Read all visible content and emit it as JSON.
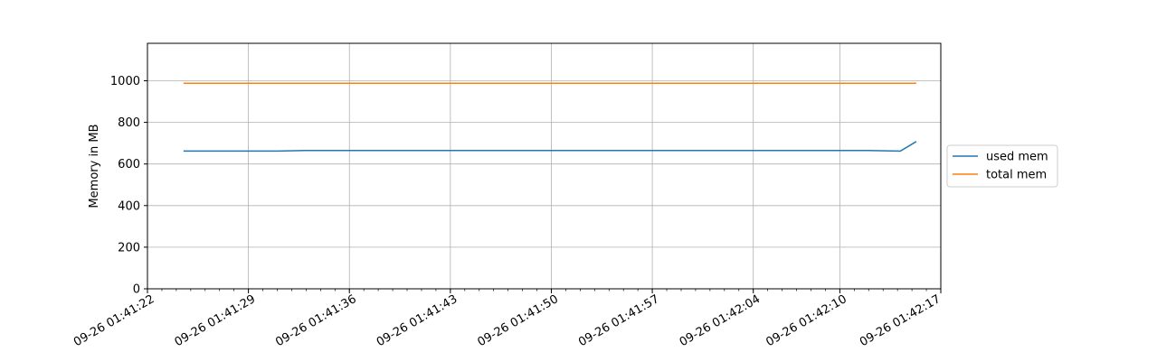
{
  "chart_data": {
    "type": "line",
    "title": "",
    "xlabel": "",
    "ylabel": "Memory in MB",
    "ylim": [
      0,
      1180
    ],
    "xlim": [
      "2024-09-26 01:41:22",
      "2024-09-26 01:42:17"
    ],
    "grid": true,
    "legend": "center-right",
    "y_ticks": [
      0,
      200,
      400,
      600,
      800,
      1000
    ],
    "x_ticks": [
      {
        "t": "2024-09-26 01:41:29",
        "label": "09-26 01:41:29"
      },
      {
        "t": "2024-09-26 01:41:36",
        "label": "09-26 01:41:36"
      },
      {
        "t": "2024-09-26 01:41:43",
        "label": "09-26 01:41:43"
      },
      {
        "t": "2024-09-26 01:41:50",
        "label": "09-26 01:41:50"
      },
      {
        "t": "2024-09-26 01:41:57",
        "label": "09-26 01:41:57"
      },
      {
        "t": "2024-09-26 01:42:04",
        "label": "09-26 01:42:04"
      },
      {
        "t": "2024-09-26 01:42:10",
        "label": "09-26 01:42:10"
      }
    ],
    "x_edge_labels": {
      "left": "09-26 01:41:22",
      "right": "09-26 01:42:17"
    },
    "series": [
      {
        "name": "used mem",
        "color": "#1f77b4",
        "points": [
          [
            "2024-09-26 01:41:24.5",
            662
          ],
          [
            "2024-09-26 01:41:31",
            662
          ],
          [
            "2024-09-26 01:41:33",
            665
          ],
          [
            "2024-09-26 01:42:12",
            665
          ],
          [
            "2024-09-26 01:42:14",
            662
          ],
          [
            "2024-09-26 01:42:14.2",
            662
          ],
          [
            "2024-09-26 01:42:15.3",
            708
          ]
        ]
      },
      {
        "name": "total mem",
        "color": "#ff7f0e",
        "points": [
          [
            "2024-09-26 01:41:24.5",
            988
          ],
          [
            "2024-09-26 01:42:15.3",
            988
          ]
        ]
      }
    ]
  }
}
